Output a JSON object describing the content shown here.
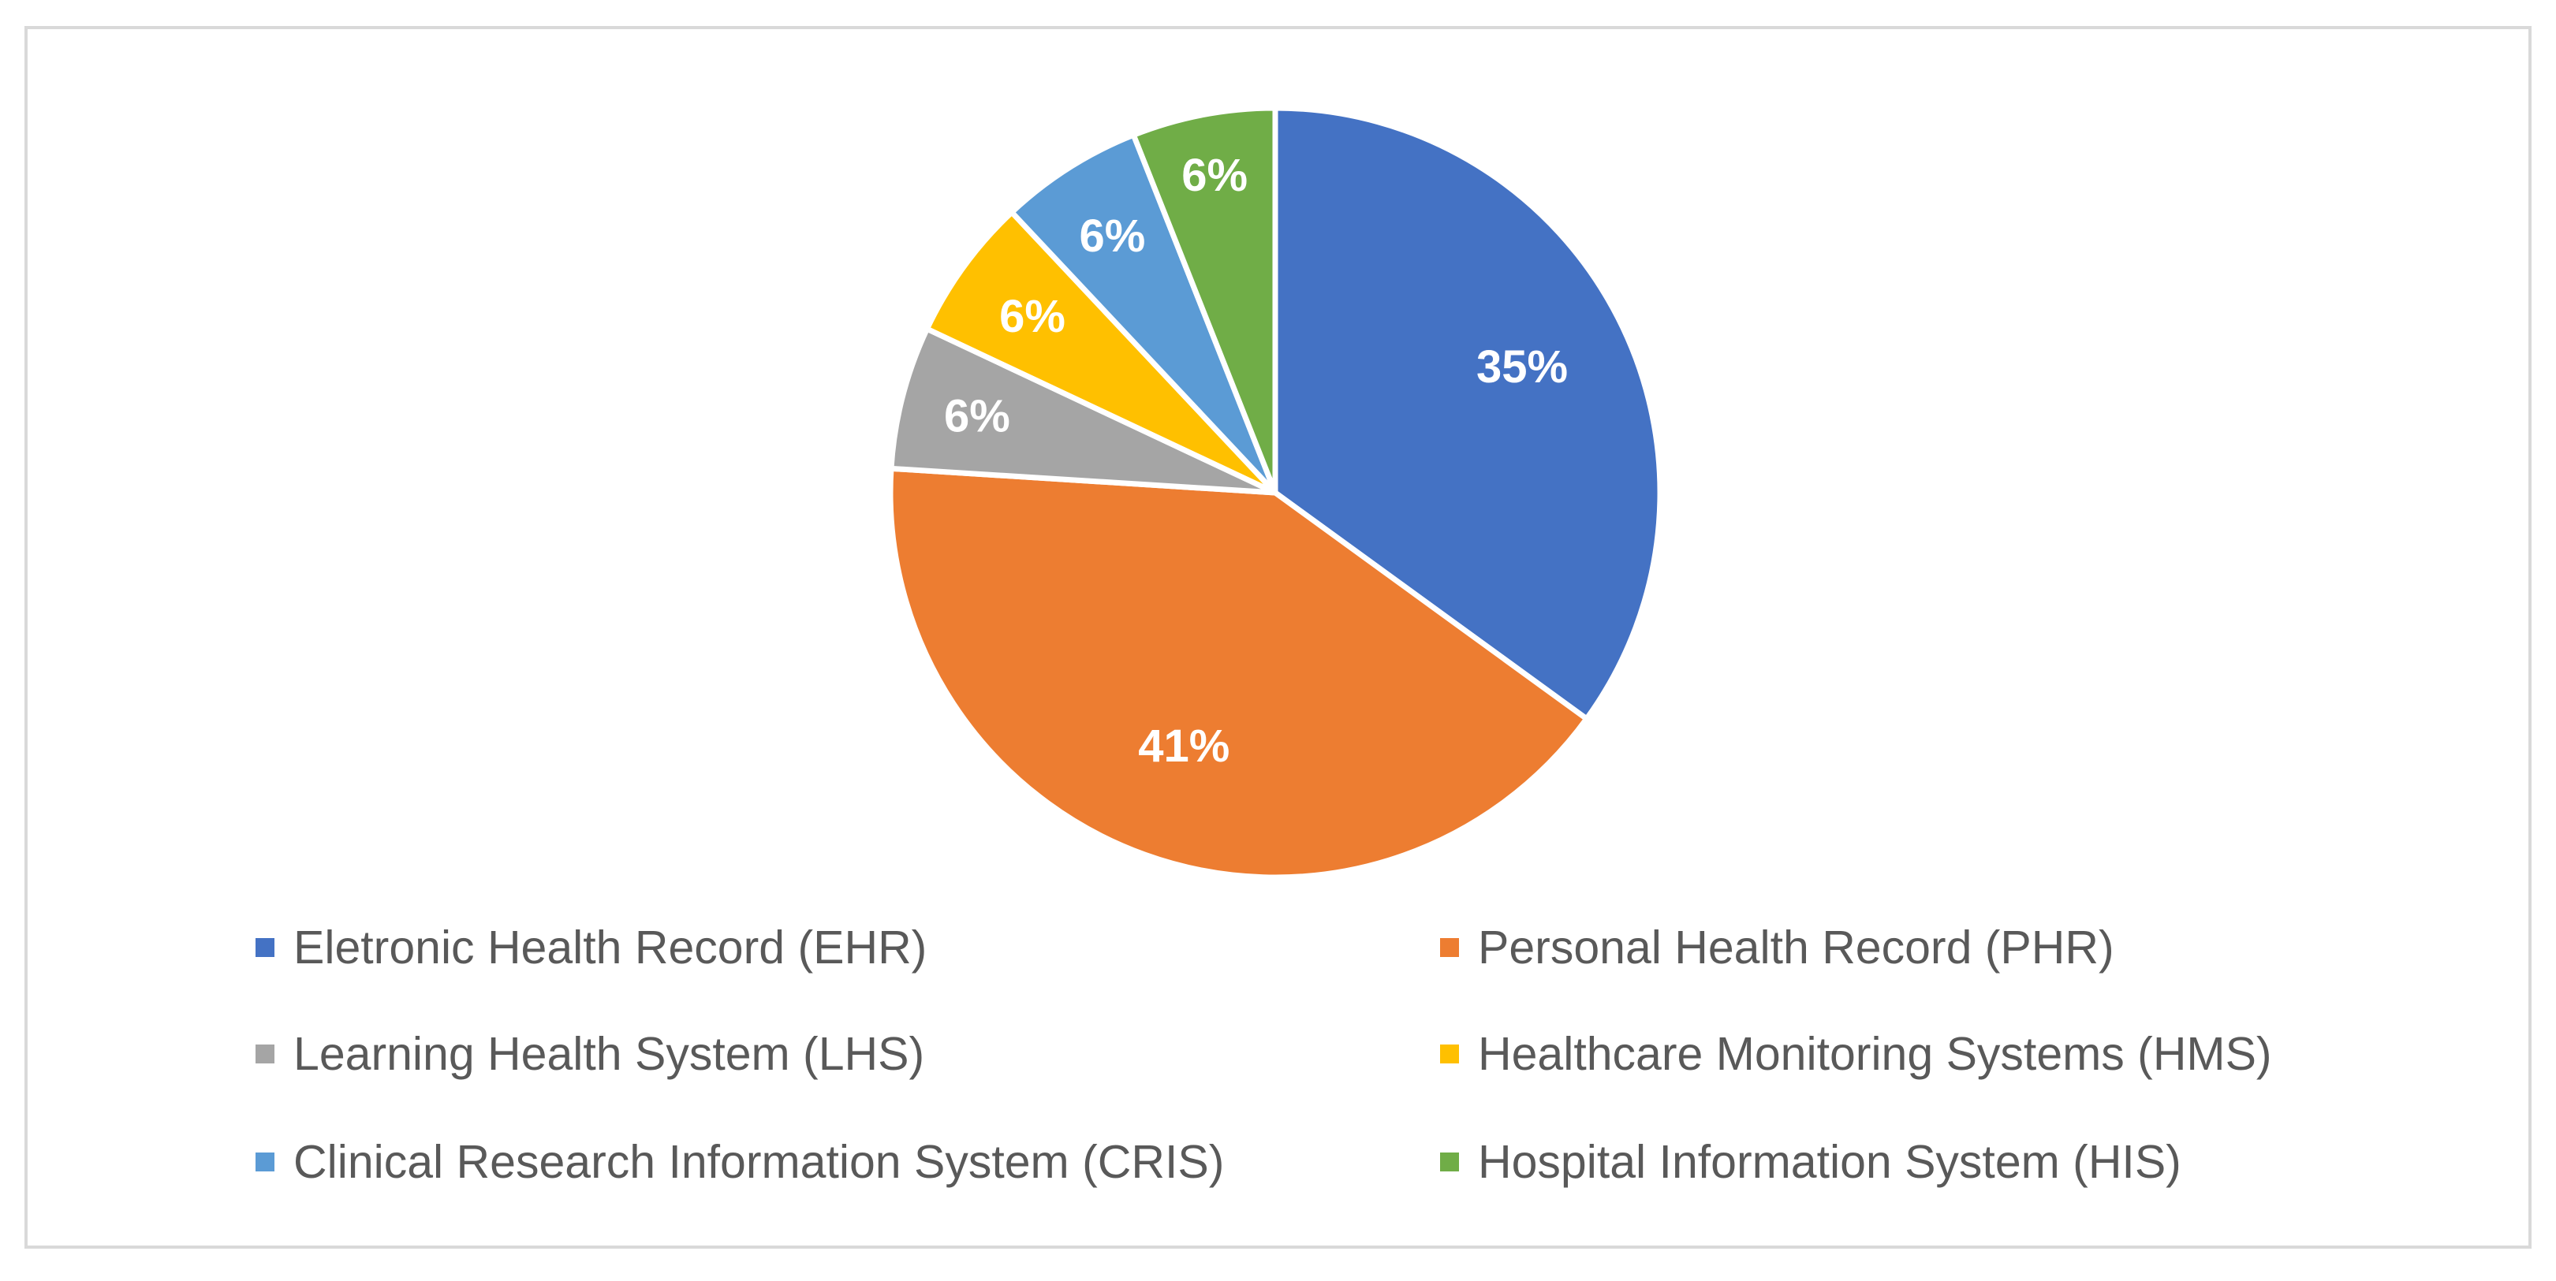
{
  "chart_data": {
    "type": "pie",
    "title": "",
    "categories": [
      "Eletronic Health Record (EHR)",
      "Personal Health Record (PHR)",
      "Learning Health System (LHS)",
      "Healthcare Monitoring Systems (HMS)",
      "Clinical Research Information System (CRIS)",
      "Hospital Information System (HIS)"
    ],
    "values": [
      35,
      41,
      6,
      6,
      6,
      6
    ],
    "labels": [
      "35%",
      "41%",
      "6%",
      "6%",
      "6%",
      "6%"
    ],
    "colors": [
      "#4472C4",
      "#ED7D31",
      "#A5A5A5",
      "#FFC000",
      "#5B9BD5",
      "#70AD47"
    ],
    "start_angle": "12 o'clock",
    "direction": "clockwise",
    "legend_position": "bottom"
  }
}
